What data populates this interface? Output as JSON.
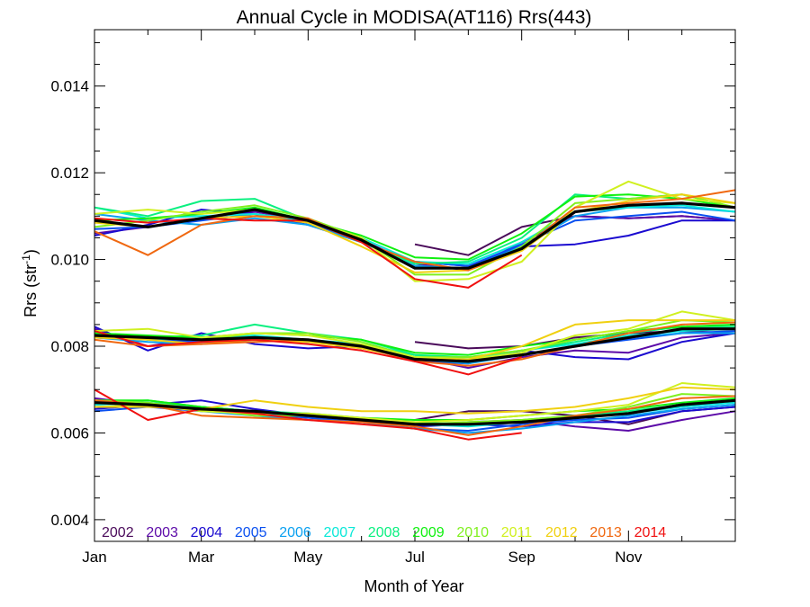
{
  "chart_data": {
    "type": "line",
    "title": "Annual Cycle in MODISA(AT116) Rrs(443)",
    "xlabel": "Month of Year",
    "ylabel": "Rrs (str",
    "ylabel_sup": "-1",
    "ylabel_close": ")",
    "xlim": [
      0.5,
      12.5
    ],
    "ylim": [
      0.0035,
      0.0153
    ],
    "xticks": [
      {
        "value": 0.5,
        "label": "Jan"
      },
      {
        "value": 2.5,
        "label": "Mar"
      },
      {
        "value": 4.5,
        "label": "May"
      },
      {
        "value": 6.5,
        "label": "Jul"
      },
      {
        "value": 8.5,
        "label": "Sep"
      },
      {
        "value": 10.5,
        "label": "Nov"
      }
    ],
    "yticks": [
      {
        "value": 0.004,
        "label": "0.004"
      },
      {
        "value": 0.006,
        "label": "0.006"
      },
      {
        "value": 0.008,
        "label": "0.008"
      },
      {
        "value": 0.01,
        "label": "0.010"
      },
      {
        "value": 0.012,
        "label": "0.012"
      },
      {
        "value": 0.014,
        "label": "0.014"
      }
    ],
    "legend_position": "bottom-left",
    "x": [
      0.5,
      1.5,
      2.5,
      3.5,
      4.5,
      5.5,
      6.5,
      7.5,
      8.5,
      9.5,
      10.5,
      11.5,
      12.5
    ],
    "climatology_color": "#000000",
    "series": [
      {
        "name": "2002",
        "color": "#4a0a5a",
        "bands": [
          [
            null,
            null,
            null,
            null,
            null,
            null,
            0.01035,
            0.0101,
            0.01075,
            0.011,
            0.01095,
            0.011,
            0.0109
          ],
          [
            null,
            null,
            null,
            null,
            null,
            null,
            0.0081,
            0.00795,
            0.008,
            0.0082,
            0.0083,
            0.00835,
            0.0083
          ],
          [
            null,
            null,
            null,
            null,
            null,
            null,
            0.0063,
            0.0065,
            0.0065,
            0.0064,
            0.0062,
            0.0065,
            0.0066
          ]
        ]
      },
      {
        "name": "2003",
        "color": "#5c0aa8",
        "bands": [
          [
            0.0106,
            0.01075,
            0.01095,
            0.0111,
            0.0109,
            0.01045,
            0.0099,
            0.00975,
            0.0104,
            0.011,
            0.01095,
            0.011,
            0.0109
          ],
          [
            0.0084,
            0.008,
            0.0082,
            0.0082,
            0.00815,
            0.00795,
            0.00775,
            0.0075,
            0.00775,
            0.0079,
            0.00785,
            0.0082,
            0.0083
          ],
          [
            0.0068,
            0.00665,
            0.0066,
            0.0065,
            0.0064,
            0.0063,
            0.00615,
            0.00625,
            0.0063,
            0.00615,
            0.00605,
            0.0063,
            0.0065
          ]
        ]
      },
      {
        "name": "2004",
        "color": "#1a0ad0",
        "bands": [
          [
            0.01055,
            0.0108,
            0.01115,
            0.01105,
            0.0108,
            0.0104,
            0.00995,
            0.00985,
            0.0103,
            0.01035,
            0.01055,
            0.0109,
            0.0109
          ],
          [
            0.00845,
            0.0079,
            0.0083,
            0.00805,
            0.00795,
            0.008,
            0.00765,
            0.0076,
            0.0079,
            0.00775,
            0.0077,
            0.0081,
            0.0083
          ],
          [
            0.00655,
            0.00665,
            0.00675,
            0.00655,
            0.0064,
            0.0063,
            0.00615,
            0.0062,
            0.00615,
            0.00625,
            0.00625,
            0.0065,
            0.0066
          ]
        ]
      },
      {
        "name": "2005",
        "color": "#0a50f0",
        "bands": [
          [
            0.0107,
            0.01075,
            0.0109,
            0.01105,
            0.01085,
            0.0104,
            0.00995,
            0.00985,
            0.01035,
            0.0109,
            0.011,
            0.0111,
            0.0109
          ],
          [
            0.0083,
            0.00815,
            0.0081,
            0.00815,
            0.0081,
            0.008,
            0.0077,
            0.00765,
            0.0078,
            0.008,
            0.00815,
            0.0083,
            0.00835
          ],
          [
            0.0065,
            0.0066,
            0.0065,
            0.00645,
            0.00635,
            0.00625,
            0.0061,
            0.00605,
            0.0062,
            0.0063,
            0.00635,
            0.00655,
            0.00665
          ]
        ]
      },
      {
        "name": "2006",
        "color": "#0aa0f0",
        "bands": [
          [
            0.01105,
            0.0109,
            0.0108,
            0.01095,
            0.0108,
            0.0104,
            0.00985,
            0.0098,
            0.0103,
            0.011,
            0.0112,
            0.0112,
            0.0111
          ],
          [
            0.0082,
            0.0081,
            0.00805,
            0.00815,
            0.0081,
            0.008,
            0.0077,
            0.0076,
            0.0078,
            0.008,
            0.0082,
            0.0083,
            0.0083
          ],
          [
            0.0066,
            0.00665,
            0.0065,
            0.0064,
            0.0063,
            0.00625,
            0.0061,
            0.006,
            0.0061,
            0.00625,
            0.0064,
            0.00655,
            0.00665
          ]
        ]
      },
      {
        "name": "2007",
        "color": "#0ae8d8",
        "bands": [
          [
            0.0112,
            0.01095,
            0.011,
            0.01105,
            0.0109,
            0.0105,
            0.00995,
            0.0099,
            0.0104,
            0.0111,
            0.0112,
            0.01125,
            0.0111
          ],
          [
            0.0083,
            0.00815,
            0.0082,
            0.00825,
            0.00815,
            0.00805,
            0.0078,
            0.0077,
            0.0079,
            0.00805,
            0.00825,
            0.00835,
            0.0084
          ],
          [
            0.00665,
            0.0067,
            0.0066,
            0.0065,
            0.0064,
            0.0063,
            0.0062,
            0.00615,
            0.00625,
            0.00635,
            0.00645,
            0.0066,
            0.0067
          ]
        ]
      },
      {
        "name": "2008",
        "color": "#0af080",
        "bands": [
          [
            0.0112,
            0.011,
            0.01135,
            0.0114,
            0.0109,
            0.0104,
            0.0099,
            0.00995,
            0.0105,
            0.0115,
            0.0114,
            0.0115,
            0.0112
          ],
          [
            0.00825,
            0.0082,
            0.00825,
            0.0085,
            0.0083,
            0.00815,
            0.0078,
            0.00775,
            0.0079,
            0.0081,
            0.0083,
            0.00845,
            0.00845
          ],
          [
            0.0067,
            0.00675,
            0.0066,
            0.0065,
            0.00645,
            0.00635,
            0.00625,
            0.0062,
            0.0063,
            0.0064,
            0.0065,
            0.00665,
            0.00675
          ]
        ]
      },
      {
        "name": "2009",
        "color": "#10f010",
        "bands": [
          [
            0.0109,
            0.01095,
            0.01105,
            0.0112,
            0.0109,
            0.01055,
            0.01005,
            0.01,
            0.0106,
            0.01145,
            0.0115,
            0.0114,
            0.0112
          ],
          [
            0.0083,
            0.00825,
            0.0082,
            0.0083,
            0.00825,
            0.00815,
            0.00785,
            0.0078,
            0.008,
            0.00815,
            0.00835,
            0.00845,
            0.0085
          ],
          [
            0.00675,
            0.00675,
            0.0066,
            0.0065,
            0.0064,
            0.00635,
            0.0063,
            0.0063,
            0.0064,
            0.0065,
            0.00655,
            0.0067,
            0.0068
          ]
        ]
      },
      {
        "name": "2010",
        "color": "#80f020",
        "bands": [
          [
            0.01075,
            0.0109,
            0.0111,
            0.01125,
            0.01095,
            0.0105,
            0.00965,
            0.00965,
            0.0103,
            0.0113,
            0.0114,
            0.0115,
            0.0112
          ],
          [
            0.0082,
            0.0082,
            0.00815,
            0.0083,
            0.0083,
            0.0081,
            0.00775,
            0.00775,
            0.0079,
            0.00815,
            0.00835,
            0.0086,
            0.00855
          ],
          [
            0.00675,
            0.0067,
            0.00655,
            0.0064,
            0.0064,
            0.0063,
            0.0062,
            0.00625,
            0.0063,
            0.0064,
            0.0066,
            0.0069,
            0.00685
          ]
        ]
      },
      {
        "name": "2011",
        "color": "#d0f020",
        "bands": [
          [
            0.01105,
            0.01115,
            0.01105,
            0.01115,
            0.0109,
            0.0105,
            0.0095,
            0.00955,
            0.00995,
            0.0112,
            0.0118,
            0.0114,
            0.0113
          ],
          [
            0.00835,
            0.0084,
            0.0082,
            0.0083,
            0.00825,
            0.00805,
            0.00775,
            0.0077,
            0.00785,
            0.00825,
            0.0084,
            0.0088,
            0.0086
          ],
          [
            0.0066,
            0.00665,
            0.0065,
            0.00645,
            0.00645,
            0.00635,
            0.00625,
            0.0063,
            0.0064,
            0.0065,
            0.00665,
            0.00715,
            0.00705
          ]
        ]
      },
      {
        "name": "2012",
        "color": "#f0d010",
        "bands": [
          [
            0.01085,
            0.01075,
            0.01095,
            0.011,
            0.01085,
            0.0103,
            0.0097,
            0.00975,
            0.0102,
            0.0111,
            0.01135,
            0.0115,
            0.0113
          ],
          [
            0.0082,
            0.00815,
            0.00805,
            0.00815,
            0.0081,
            0.00795,
            0.0077,
            0.0077,
            0.008,
            0.0085,
            0.0086,
            0.0086,
            0.0086
          ],
          [
            0.0066,
            0.0066,
            0.00655,
            0.00675,
            0.0066,
            0.0065,
            0.0065,
            0.00645,
            0.0065,
            0.0066,
            0.0068,
            0.00705,
            0.007
          ]
        ]
      },
      {
        "name": "2013",
        "color": "#f06810",
        "bands": [
          [
            0.01065,
            0.0101,
            0.0108,
            0.011,
            0.01095,
            0.0104,
            0.00995,
            0.00975,
            0.01025,
            0.0112,
            0.0113,
            0.0114,
            0.0116
          ],
          [
            0.00815,
            0.008,
            0.00805,
            0.0081,
            0.00815,
            0.008,
            0.00765,
            0.00755,
            0.0077,
            0.008,
            0.0083,
            0.0085,
            0.00855
          ],
          [
            0.00675,
            0.00665,
            0.0064,
            0.00635,
            0.0063,
            0.00625,
            0.00615,
            0.00595,
            0.00615,
            0.0064,
            0.00655,
            0.0068,
            0.00685
          ]
        ]
      },
      {
        "name": "2014",
        "color": "#f01010",
        "bands": [
          [
            0.01095,
            0.01085,
            0.01095,
            0.0109,
            0.0109,
            0.0104,
            0.00955,
            0.00935,
            0.0101,
            null,
            null,
            null,
            null
          ],
          [
            0.00835,
            0.008,
            0.0081,
            0.00815,
            0.00805,
            0.0079,
            0.00765,
            0.00735,
            0.00775,
            null,
            null,
            null,
            null
          ],
          [
            0.007,
            0.0063,
            0.00655,
            0.00645,
            0.0063,
            0.0062,
            0.0061,
            0.00585,
            0.006,
            null,
            null,
            null,
            null
          ]
        ]
      }
    ],
    "climatology": [
      [
        0.0109,
        0.01075,
        0.01095,
        0.01115,
        0.0109,
        0.01045,
        0.0098,
        0.0098,
        0.01025,
        0.0111,
        0.01125,
        0.0113,
        0.0112
      ],
      [
        0.00825,
        0.0082,
        0.00815,
        0.0082,
        0.00815,
        0.008,
        0.0077,
        0.00765,
        0.0078,
        0.008,
        0.0082,
        0.0084,
        0.0084
      ],
      [
        0.0067,
        0.00665,
        0.00655,
        0.0065,
        0.0064,
        0.0063,
        0.0062,
        0.0062,
        0.00625,
        0.00635,
        0.00645,
        0.00665,
        0.00675
      ]
    ]
  }
}
